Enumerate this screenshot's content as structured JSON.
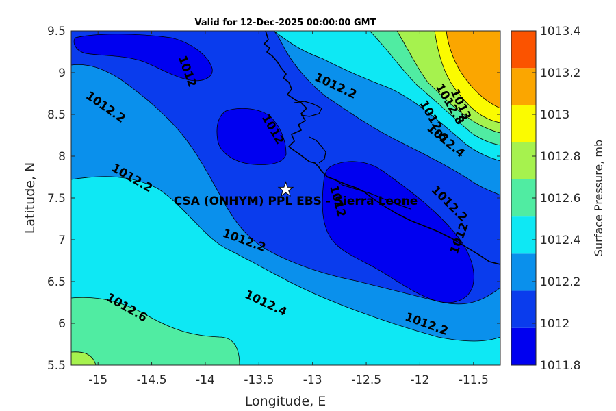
{
  "chart_data": {
    "type": "contour-map",
    "title": "Valid for 12-Dec-2025 00:00:00 GMT",
    "xlabel": "Longitude, E",
    "ylabel": "Latitude, N",
    "xlim": [
      -15.25,
      -11.25
    ],
    "ylim": [
      5.5,
      9.5
    ],
    "x_ticks": [
      "-15",
      "-14.5",
      "-14",
      "-13.5",
      "-13",
      "-12.5",
      "-12",
      "-11.5"
    ],
    "y_ticks": [
      "5.5",
      "6",
      "6.5",
      "7",
      "7.5",
      "8",
      "8.5",
      "9",
      "9.5"
    ],
    "colorbar": {
      "label": "Surface Pressure, mb",
      "levels": [
        "1011.8",
        "1012",
        "1012.2",
        "1012.4",
        "1012.6",
        "1012.8",
        "1013",
        "1013.2",
        "1013.4"
      ],
      "colors": [
        "#0000f0",
        "#0a3ced",
        "#0a90ec",
        "#0ee8f4",
        "#50eca2",
        "#a6f24e",
        "#fbfb00",
        "#fba600",
        "#fb5300"
      ]
    },
    "contour_labels": [
      {
        "text": "1012",
        "lon": -12.8,
        "lat": 7.45
      },
      {
        "text": "1012",
        "lon": -13.4,
        "lat": 8.3
      },
      {
        "text": "1012",
        "lon": -14.2,
        "lat": 9.0
      },
      {
        "text": "1012",
        "lon": -11.6,
        "lat": 7.0
      },
      {
        "text": "1012.2",
        "lon": -12.8,
        "lat": 8.8
      },
      {
        "text": "1012.2",
        "lon": -14.95,
        "lat": 8.55
      },
      {
        "text": "1012.2",
        "lon": -14.7,
        "lat": 7.7
      },
      {
        "text": "1012.2",
        "lon": -13.65,
        "lat": 6.95
      },
      {
        "text": "1012.2",
        "lon": -11.95,
        "lat": 5.95
      },
      {
        "text": "1012.2",
        "lon": -11.75,
        "lat": 7.4
      },
      {
        "text": "1012.4",
        "lon": -13.45,
        "lat": 6.2
      },
      {
        "text": "1012.4",
        "lon": -11.78,
        "lat": 8.15
      },
      {
        "text": "1012.6",
        "lon": -14.75,
        "lat": 6.15
      },
      {
        "text": "1012.6",
        "lon": -11.9,
        "lat": 8.4
      },
      {
        "text": "1012.8",
        "lon": -11.75,
        "lat": 8.6
      },
      {
        "text": "1013",
        "lon": -11.65,
        "lat": 8.6
      }
    ],
    "site": {
      "name": "CSA (ONHYM) PPL EBS - Sierra Leone",
      "lon": -13.25,
      "lat": 7.6
    }
  }
}
